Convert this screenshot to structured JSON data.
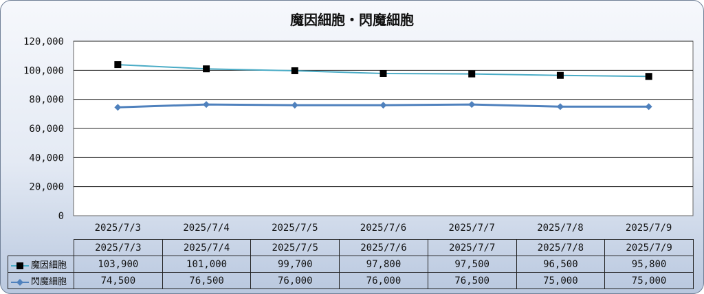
{
  "chart_data": {
    "type": "line",
    "title": "魔因細胞・閃魔細胞",
    "xlabel": "",
    "ylabel": "",
    "categories": [
      "2025/7/3",
      "2025/7/4",
      "2025/7/5",
      "2025/7/6",
      "2025/7/7",
      "2025/7/8",
      "2025/7/9"
    ],
    "ylim": [
      0,
      120000
    ],
    "yticks": [
      "0",
      "20,000",
      "40,000",
      "60,000",
      "80,000",
      "100,000",
      "120,000"
    ],
    "grid": true,
    "legend": "data-table",
    "series": [
      {
        "name": "魔因細胞",
        "color": "#4bacc6",
        "marker": "square",
        "values": [
          103900,
          101000,
          99700,
          97800,
          97500,
          96500,
          95800
        ],
        "labels": [
          "103,900",
          "101,000",
          "99,700",
          "97,800",
          "97,500",
          "96,500",
          "95,800"
        ]
      },
      {
        "name": "閃魔細胞",
        "color": "#4f81bd",
        "marker": "diamond",
        "values": [
          74500,
          76500,
          76000,
          76000,
          76500,
          75000,
          75000
        ],
        "labels": [
          "74,500",
          "76,500",
          "76,000",
          "76,000",
          "76,500",
          "75,000",
          "75,000"
        ]
      }
    ]
  }
}
